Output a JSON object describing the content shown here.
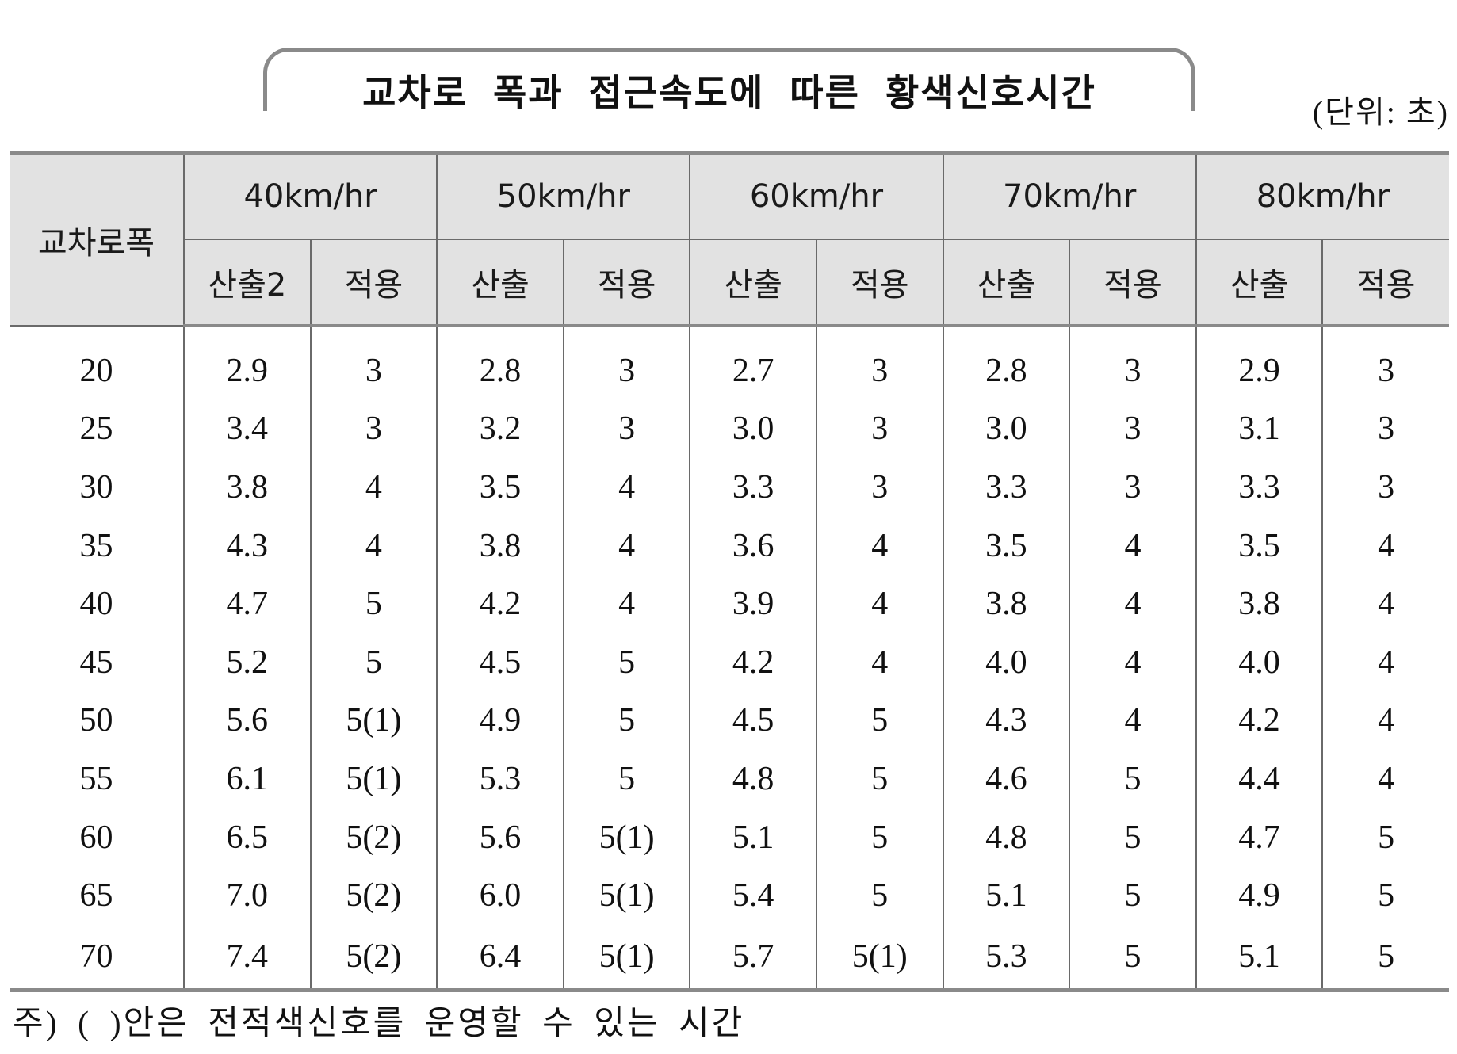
{
  "title": "교차로 폭과 접근속도에 따른 황색신호시간",
  "unit_note": "(단위: 초)",
  "table": {
    "width_header": "교차로폭",
    "speeds": [
      "40km/hr",
      "50km/hr",
      "60km/hr",
      "70km/hr",
      "80km/hr"
    ],
    "sub_headers": [
      "산출2",
      "적용",
      "산출",
      "적용",
      "산출",
      "적용",
      "산출",
      "적용",
      "산출",
      "적용"
    ],
    "rows": [
      {
        "width": "20",
        "cells": [
          "2.9",
          "3",
          "2.8",
          "3",
          "2.7",
          "3",
          "2.8",
          "3",
          "2.9",
          "3"
        ]
      },
      {
        "width": "25",
        "cells": [
          "3.4",
          "3",
          "3.2",
          "3",
          "3.0",
          "3",
          "3.0",
          "3",
          "3.1",
          "3"
        ]
      },
      {
        "width": "30",
        "cells": [
          "3.8",
          "4",
          "3.5",
          "4",
          "3.3",
          "3",
          "3.3",
          "3",
          "3.3",
          "3"
        ]
      },
      {
        "width": "35",
        "cells": [
          "4.3",
          "4",
          "3.8",
          "4",
          "3.6",
          "4",
          "3.5",
          "4",
          "3.5",
          "4"
        ]
      },
      {
        "width": "40",
        "cells": [
          "4.7",
          "5",
          "4.2",
          "4",
          "3.9",
          "4",
          "3.8",
          "4",
          "3.8",
          "4"
        ]
      },
      {
        "width": "45",
        "cells": [
          "5.2",
          "5",
          "4.5",
          "5",
          "4.2",
          "4",
          "4.0",
          "4",
          "4.0",
          "4"
        ]
      },
      {
        "width": "50",
        "cells": [
          "5.6",
          "5(1)",
          "4.9",
          "5",
          "4.5",
          "5",
          "4.3",
          "4",
          "4.2",
          "4"
        ]
      },
      {
        "width": "55",
        "cells": [
          "6.1",
          "5(1)",
          "5.3",
          "5",
          "4.8",
          "5",
          "4.6",
          "5",
          "4.4",
          "4"
        ]
      },
      {
        "width": "60",
        "cells": [
          "6.5",
          "5(2)",
          "5.6",
          "5(1)",
          "5.1",
          "5",
          "4.8",
          "5",
          "4.7",
          "5"
        ]
      },
      {
        "width": "65",
        "cells": [
          "7.0",
          "5(2)",
          "6.0",
          "5(1)",
          "5.4",
          "5",
          "5.1",
          "5",
          "4.9",
          "5"
        ]
      },
      {
        "width": "70",
        "cells": [
          "7.4",
          "5(2)",
          "6.4",
          "5(1)",
          "5.7",
          "5(1)",
          "5.3",
          "5",
          "5.1",
          "5"
        ]
      }
    ]
  },
  "footnote": "주) ( )안은 전적색신호를 운영할 수 있는 시간"
}
